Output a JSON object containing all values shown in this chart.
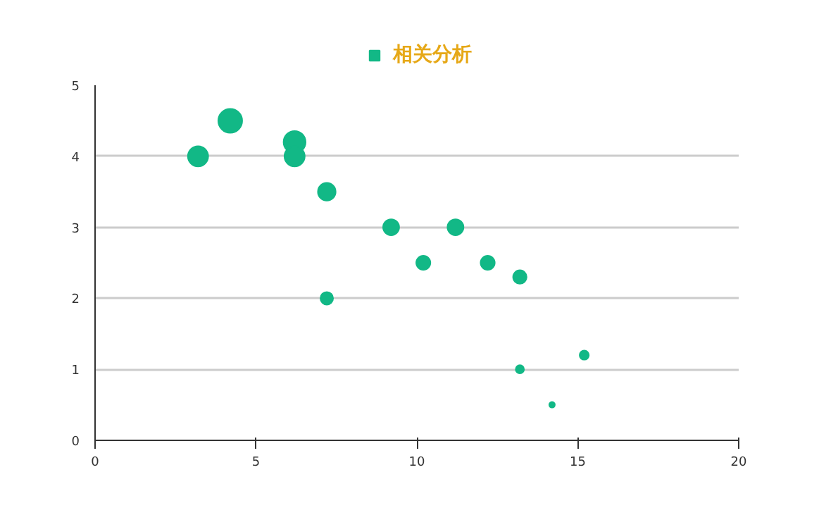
{
  "chart_data": {
    "type": "bubble",
    "x": [
      3.2,
      4.2,
      6.2,
      6.2,
      7.2,
      9.2,
      10.2,
      11.2,
      12.2,
      13.2,
      7.2,
      13.2,
      14.2,
      15.2
    ],
    "series": [
      {
        "name": "相关分析",
        "color": "#12b886",
        "values": [
          4,
          4.5,
          4.2,
          4,
          3.5,
          3,
          2.5,
          3,
          2.5,
          2.3,
          2,
          1,
          0.5,
          1.2
        ],
        "sizes": [
          0.72,
          1,
          0.85,
          0.72,
          0.55,
          0.45,
          0.35,
          0.45,
          0.35,
          0.32,
          0.28,
          0.12,
          0.055,
          0.15
        ]
      }
    ],
    "xlim": [
      0,
      20
    ],
    "xticks": [
      0,
      5,
      10,
      15,
      20
    ],
    "ylim": [
      0,
      5
    ],
    "yticks": [
      0,
      1,
      2,
      3,
      4,
      5
    ],
    "grid": "y",
    "legend": "top"
  }
}
